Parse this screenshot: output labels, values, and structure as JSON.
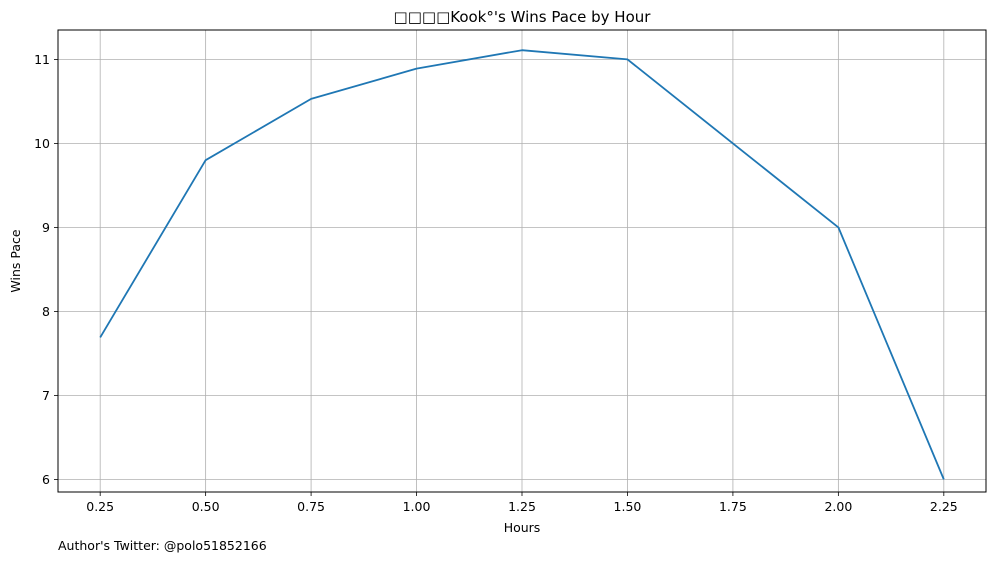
{
  "chart_data": {
    "type": "line",
    "title": "□□□□Kook°'s Wins Pace by Hour",
    "xlabel": "Hours",
    "ylabel": "Wins Pace",
    "x": [
      0.25,
      0.5,
      0.75,
      1.0,
      1.25,
      1.5,
      1.75,
      2.0,
      2.25
    ],
    "series": [
      {
        "values": [
          7.69,
          9.8,
          10.53,
          10.89,
          11.11,
          11.0,
          10.0,
          9.0,
          6.0
        ],
        "color": "#1f77b4"
      }
    ],
    "xticks": [
      "0.25",
      "0.50",
      "0.75",
      "1.00",
      "1.25",
      "1.50",
      "1.75",
      "2.00",
      "2.25"
    ],
    "yticks": [
      "6",
      "7",
      "8",
      "9",
      "10",
      "11"
    ],
    "xlim": [
      0.15,
      2.35
    ],
    "ylim": [
      5.85,
      11.35
    ],
    "grid": true
  },
  "footer": "Author's Twitter: @polo51852166"
}
